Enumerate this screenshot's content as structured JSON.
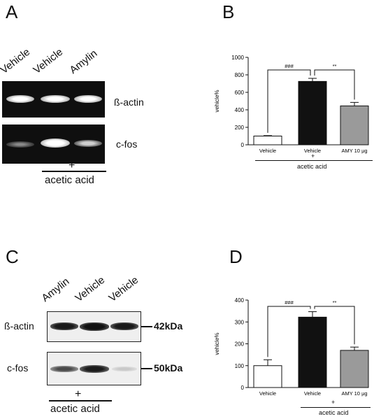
{
  "panels": {
    "A": {
      "letter": "A",
      "lanes": [
        "Vehicle",
        "Vehicle",
        "Amylin"
      ],
      "row_labels": [
        "ß-actin",
        "c-fos"
      ],
      "plus": "+",
      "treatment": "acetic acid"
    },
    "B": {
      "letter": "B",
      "plus": "+",
      "treatment": "acetic acid"
    },
    "C": {
      "letter": "C",
      "lanes": [
        "Amylin",
        "Vehicle",
        "Vehicle"
      ],
      "row_labels": [
        "ß-actin",
        "c-fos"
      ],
      "markers": [
        "42kDa",
        "50kDa"
      ],
      "plus": "+",
      "treatment": "acetic acid"
    },
    "D": {
      "letter": "D",
      "plus": "+",
      "treatment": "acetic acid"
    }
  },
  "chart_data": [
    {
      "panel": "B",
      "type": "bar",
      "categories": [
        "Vehicle",
        "Vehicle",
        "AMY 10 μg"
      ],
      "values": [
        100,
        725,
        445
      ],
      "errors": [
        5,
        35,
        40
      ],
      "bar_colors": [
        "#ffffff",
        "#111111",
        "#9a9a9a"
      ],
      "ylabel": "vehicle%",
      "ylim": [
        0,
        1000
      ],
      "yticks": [
        0,
        200,
        400,
        600,
        800,
        1000
      ],
      "annotations": [
        {
          "between": [
            0,
            1
          ],
          "label": "###"
        },
        {
          "between": [
            1,
            2
          ],
          "label": "**"
        }
      ]
    },
    {
      "panel": "D",
      "type": "bar",
      "categories": [
        "Vehicle",
        "Vehicle",
        "AMY 10 μg"
      ],
      "values": [
        100,
        322,
        170
      ],
      "errors": [
        27,
        25,
        15
      ],
      "bar_colors": [
        "#ffffff",
        "#111111",
        "#9a9a9a"
      ],
      "ylabel": "vehicle%",
      "ylim": [
        0,
        400
      ],
      "yticks": [
        0,
        100,
        200,
        300,
        400
      ],
      "annotations": [
        {
          "between": [
            0,
            1
          ],
          "label": "###"
        },
        {
          "between": [
            1,
            2
          ],
          "label": "**"
        }
      ]
    }
  ]
}
